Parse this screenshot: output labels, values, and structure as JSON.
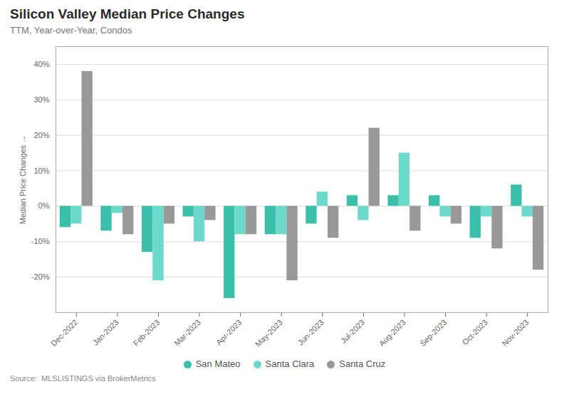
{
  "chart_data": {
    "type": "bar",
    "title": "Silicon Valley Median Price Changes",
    "subtitle": "TTM, Year-over-Year, Condos",
    "ylabel": "Median Price Changes",
    "source": "Source:  MLSLISTINGS via BrokerMetrics",
    "categories": [
      "Dec-2022",
      "Jan-2023",
      "Feb-2023",
      "Mar-2023",
      "Apr-2023",
      "May-2023",
      "Jun-2023",
      "Jul-2023",
      "Aug-2023",
      "Sep-2023",
      "Oct-2023",
      "Nov-2023"
    ],
    "series": [
      {
        "name": "San Mateo",
        "color": "#3bbfaa",
        "values": [
          -6,
          -7,
          -13,
          -3,
          -26,
          -8,
          -5,
          3,
          3,
          3,
          -9,
          6
        ]
      },
      {
        "name": "Santa Clara",
        "color": "#6dd8cc",
        "values": [
          -5,
          -2,
          -21,
          -10,
          -8,
          -8,
          4,
          -4,
          15,
          -3,
          -3,
          -3
        ]
      },
      {
        "name": "Santa Cruz",
        "color": "#999999",
        "values": [
          38,
          -8,
          -5,
          -4,
          -8,
          -21,
          -9,
          22,
          -7,
          -5,
          -12,
          -18
        ]
      }
    ],
    "ylim": [
      -30,
      45
    ],
    "yticks": [
      {
        "value": -20,
        "label": "-20%"
      },
      {
        "value": -10,
        "label": "-10%"
      },
      {
        "value": 0,
        "label": "0%"
      },
      {
        "value": 10,
        "label": "10%"
      },
      {
        "value": 20,
        "label": "20%"
      },
      {
        "value": 30,
        "label": "30%"
      },
      {
        "value": 40,
        "label": "40%"
      }
    ],
    "grid": true,
    "legend": "bottom"
  }
}
